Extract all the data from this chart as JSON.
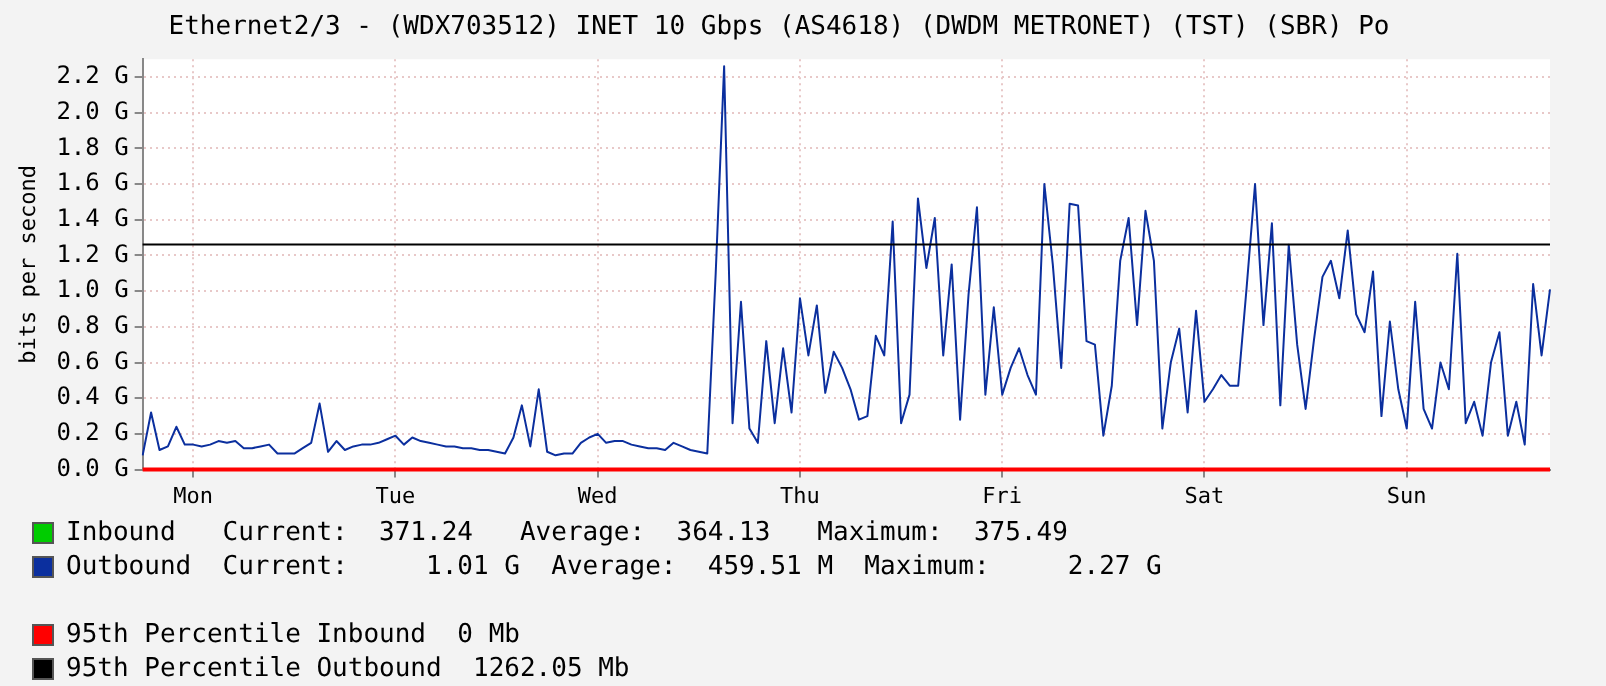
{
  "chart_data": {
    "type": "line",
    "title": "Ethernet2/3 - (WDX703512) INET 10 Gbps (AS4618) (DWDM METRONET) (TST) (SBR) Po",
    "ylabel": "bits per second",
    "categories": [
      null,
      null,
      null,
      null,
      null,
      null,
      "Mon",
      null,
      null,
      null,
      null,
      null,
      null,
      null,
      null,
      null,
      null,
      null,
      null,
      null,
      null,
      null,
      null,
      null,
      null,
      null,
      null,
      null,
      null,
      null,
      "Tue",
      null,
      null,
      null,
      null,
      null,
      null,
      null,
      null,
      null,
      null,
      null,
      null,
      null,
      null,
      null,
      null,
      null,
      null,
      null,
      null,
      null,
      null,
      null,
      "Wed",
      null,
      null,
      null,
      null,
      null,
      null,
      null,
      null,
      null,
      null,
      null,
      null,
      null,
      null,
      null,
      null,
      null,
      null,
      null,
      null,
      null,
      null,
      null,
      "Thu",
      null,
      null,
      null,
      null,
      null,
      null,
      null,
      null,
      null,
      null,
      null,
      null,
      null,
      null,
      null,
      null,
      null,
      null,
      null,
      null,
      null,
      null,
      null,
      "Fri",
      null,
      null,
      null,
      null,
      null,
      null,
      null,
      null,
      null,
      null,
      null,
      null,
      null,
      null,
      null,
      null,
      null,
      null,
      null,
      null,
      null,
      null,
      null,
      "Sat",
      null,
      null,
      null,
      null,
      null,
      null,
      null,
      null,
      null,
      null,
      null,
      null,
      null,
      null,
      null,
      null,
      null,
      null,
      null,
      null,
      null,
      null,
      null,
      "Sun",
      null,
      null,
      null,
      null,
      null,
      null,
      null,
      null,
      null,
      null,
      null,
      null,
      null,
      null,
      null,
      null,
      null
    ],
    "series": [
      {
        "name": "Outbound",
        "color": "#0b2f9e",
        "values": [
          0.08,
          0.32,
          0.11,
          0.13,
          0.24,
          0.14,
          0.14,
          0.13,
          0.14,
          0.16,
          0.15,
          0.16,
          0.12,
          0.12,
          0.13,
          0.14,
          0.09,
          0.09,
          0.09,
          0.12,
          0.15,
          0.37,
          0.1,
          0.16,
          0.11,
          0.13,
          0.14,
          0.14,
          0.15,
          0.17,
          0.19,
          0.14,
          0.18,
          0.16,
          0.15,
          0.14,
          0.13,
          0.13,
          0.12,
          0.12,
          0.11,
          0.11,
          0.1,
          0.09,
          0.18,
          0.36,
          0.13,
          0.45,
          0.1,
          0.08,
          0.09,
          0.09,
          0.15,
          0.18,
          0.2,
          0.15,
          0.16,
          0.16,
          0.14,
          0.13,
          0.12,
          0.12,
          0.11,
          0.15,
          0.13,
          0.11,
          0.1,
          0.09,
          1.1,
          2.26,
          0.26,
          0.94,
          0.23,
          0.15,
          0.72,
          0.26,
          0.68,
          0.32,
          0.96,
          0.64,
          0.92,
          0.43,
          0.66,
          0.57,
          0.45,
          0.28,
          0.3,
          0.75,
          0.64,
          1.39,
          0.26,
          0.42,
          1.52,
          1.13,
          1.41,
          0.64,
          1.15,
          0.28,
          0.98,
          1.47,
          0.42,
          0.91,
          0.42,
          0.57,
          0.68,
          0.53,
          0.42,
          1.6,
          1.15,
          0.57,
          1.49,
          1.48,
          0.72,
          0.7,
          0.19,
          0.47,
          1.17,
          1.41,
          0.81,
          1.45,
          1.17,
          0.23,
          0.6,
          0.79,
          0.32,
          0.89,
          0.38,
          0.45,
          0.53,
          0.47,
          0.47,
          1.02,
          1.6,
          0.81,
          1.38,
          0.36,
          1.26,
          0.7,
          0.34,
          0.73,
          1.08,
          1.17,
          0.96,
          1.34,
          0.87,
          0.77,
          1.11,
          0.3,
          0.83,
          0.45,
          0.23,
          0.94,
          0.34,
          0.23,
          0.6,
          0.45,
          1.21,
          0.26,
          0.38,
          0.19,
          0.6,
          0.77,
          0.19,
          0.38,
          0.14,
          1.04,
          0.64,
          1.01
        ]
      }
    ],
    "ylim": [
      0,
      2.3
    ],
    "yticks": [
      {
        "value": 0,
        "label": "0.0 G"
      },
      {
        "value": 0.2,
        "label": "0.2 G"
      },
      {
        "value": 0.4,
        "label": "0.4 G"
      },
      {
        "value": 0.6,
        "label": "0.6 G"
      },
      {
        "value": 0.8,
        "label": "0.8 G"
      },
      {
        "value": 1.0,
        "label": "1.0 G"
      },
      {
        "value": 1.2,
        "label": "1.2 G"
      },
      {
        "value": 1.4,
        "label": "1.4 G"
      },
      {
        "value": 1.6,
        "label": "1.6 G"
      },
      {
        "value": 1.8,
        "label": "1.8 G"
      },
      {
        "value": 2.0,
        "label": "2.0 G"
      },
      {
        "value": 2.2,
        "label": "2.2 G"
      }
    ],
    "ref_lines": [
      {
        "axis": "y",
        "value": 0,
        "label": "95th Percentile Inbound  0 Mb",
        "color": "#ff0000"
      },
      {
        "axis": "y",
        "value": 1.26205,
        "label": "95th Percentile Outbound  1262.05 Mb",
        "color": "#000000"
      }
    ],
    "annotations": [
      "Inbound   Current:  371.24   Average:  364.13   Maximum:  375.49",
      "Current:     1.01 G  Average:  459.51 M  Maximum:     2.27 G"
    ],
    "grid": true,
    "legend": "bottom",
    "marker": "none",
    "line_style": "solid"
  }
}
